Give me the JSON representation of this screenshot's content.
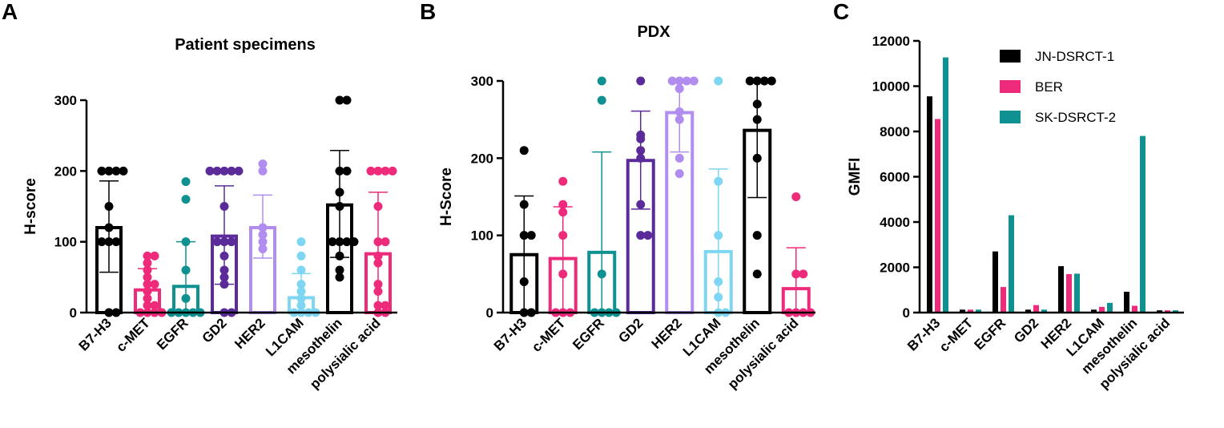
{
  "chart_data": [
    {
      "type": "bar",
      "panel": "A",
      "title": "Patient specimens",
      "xlabel": "",
      "ylabel": "H-score",
      "ylim": [
        0,
        300
      ],
      "yticks": [
        0,
        100,
        200,
        300
      ],
      "categories": [
        "B7-H3",
        "c-MET",
        "EGFR",
        "GD2",
        "HER2",
        "L1CAM",
        "mesothelin",
        "polysialic acid"
      ],
      "colors": [
        "#000000",
        "#ee2a7b",
        "#109191",
        "#5b2c99",
        "#b28df0",
        "#7fd6f2",
        "#000000",
        "#ee2a7b"
      ],
      "values": [
        120,
        32,
        37,
        108,
        120,
        21,
        152,
        83
      ],
      "sd_upper": [
        186,
        62,
        100,
        179,
        166,
        55,
        229,
        170
      ],
      "sd_lower": [
        57,
        3,
        0,
        40,
        77,
        0,
        78,
        0
      ],
      "points": [
        [
          200,
          200,
          200,
          200,
          150,
          120,
          100,
          100,
          100,
          0,
          0
        ],
        [
          80,
          80,
          70,
          60,
          50,
          40,
          40,
          30,
          20,
          10,
          10,
          0,
          0,
          0,
          0
        ],
        [
          185,
          160,
          100,
          60,
          20,
          0,
          0,
          0,
          0,
          0
        ],
        [
          200,
          200,
          200,
          200,
          200,
          150,
          100,
          100,
          100,
          80,
          60,
          50,
          40,
          0,
          0
        ],
        [
          210,
          200,
          120,
          110,
          100,
          90
        ],
        [
          100,
          80,
          60,
          40,
          30,
          20,
          10,
          0,
          0,
          0,
          0
        ],
        [
          300,
          300,
          200,
          200,
          170,
          150,
          100,
          100,
          100,
          100,
          80,
          60,
          50
        ],
        [
          200,
          200,
          200,
          200,
          150,
          100,
          100,
          80,
          70,
          40,
          30,
          10,
          10,
          0,
          0
        ]
      ]
    },
    {
      "type": "bar",
      "panel": "B",
      "title": "PDX",
      "xlabel": "",
      "ylabel": "H-Score",
      "ylim": [
        0,
        300
      ],
      "yticks": [
        0,
        100,
        200,
        300
      ],
      "categories": [
        "B7-H3",
        "c-MET",
        "EGFR",
        "GD2",
        "HER2",
        "L1CAM",
        "mesothelin",
        "polysialic acid"
      ],
      "colors": [
        "#000000",
        "#ee2a7b",
        "#109191",
        "#5b2c99",
        "#b28df0",
        "#7fd6f2",
        "#000000",
        "#ee2a7b"
      ],
      "values": [
        75,
        70,
        78,
        197,
        259,
        79,
        236,
        31
      ],
      "sd_upper": [
        151,
        137,
        208,
        261,
        300,
        186,
        300,
        84
      ],
      "sd_lower": [
        0,
        0,
        0,
        134,
        208,
        0,
        149,
        0
      ],
      "points": [
        [
          210,
          140,
          100,
          100,
          40,
          0,
          0
        ],
        [
          170,
          140,
          130,
          100,
          50,
          0,
          0,
          0
        ],
        [
          300,
          275,
          50,
          0,
          0,
          0,
          0
        ],
        [
          300,
          230,
          225,
          210,
          200,
          140,
          100,
          100
        ],
        [
          300,
          300,
          300,
          300,
          290,
          260,
          250,
          200,
          180
        ],
        [
          300,
          170,
          100,
          40,
          20,
          0,
          0
        ],
        [
          300,
          300,
          300,
          300,
          270,
          250,
          200,
          100,
          50
        ],
        [
          150,
          50,
          50,
          0,
          0,
          0,
          0
        ]
      ]
    },
    {
      "type": "bar",
      "panel": "C",
      "title": "",
      "xlabel": "",
      "ylabel": "GMFI",
      "ylim": [
        0,
        12000
      ],
      "yticks": [
        0,
        2000,
        4000,
        6000,
        8000,
        10000,
        12000
      ],
      "categories": [
        "B7-H3",
        "c-MET",
        "EGFR",
        "GD2",
        "HER2",
        "L1CAM",
        "mesothelin",
        "polysialic acid"
      ],
      "legend_position": "top-right",
      "series": [
        {
          "name": "JN-DSRCT-1",
          "color": "#000000",
          "values": [
            9550,
            130,
            2700,
            130,
            2050,
            130,
            920,
            100
          ]
        },
        {
          "name": "BER",
          "color": "#ee2a7b",
          "values": [
            8550,
            130,
            1130,
            330,
            1700,
            250,
            300,
            100
          ]
        },
        {
          "name": "SK-DSRCT-2",
          "color": "#109191",
          "values": [
            11270,
            130,
            4300,
            130,
            1720,
            430,
            7800,
            100
          ]
        }
      ]
    }
  ]
}
